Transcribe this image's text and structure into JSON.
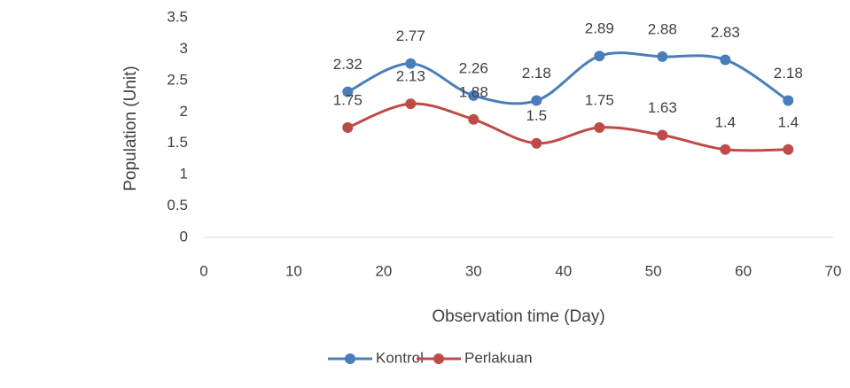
{
  "chart_data": {
    "type": "line",
    "smooth": true,
    "x_label": "Observation time (Day)",
    "y_label": "Population (Unit)",
    "x": [
      16,
      23,
      30,
      37,
      44,
      51,
      58,
      65
    ],
    "series": [
      {
        "name": "Kontrol",
        "color": "#4a7ebb",
        "values": [
          2.32,
          2.77,
          2.26,
          2.18,
          2.89,
          2.88,
          2.83,
          2.18
        ]
      },
      {
        "name": "Perlakuan",
        "color": "#be4b48",
        "values": [
          1.75,
          2.13,
          1.88,
          1.5,
          1.75,
          1.63,
          1.4,
          1.4
        ]
      }
    ],
    "xlim": [
      0,
      70
    ],
    "xticks": [
      0,
      10,
      20,
      30,
      40,
      50,
      60,
      70
    ],
    "ylim": [
      0,
      3.5
    ],
    "yticks": [
      0,
      0.5,
      1,
      1.5,
      2,
      2.5,
      3,
      3.5
    ],
    "legend": "bottom"
  }
}
